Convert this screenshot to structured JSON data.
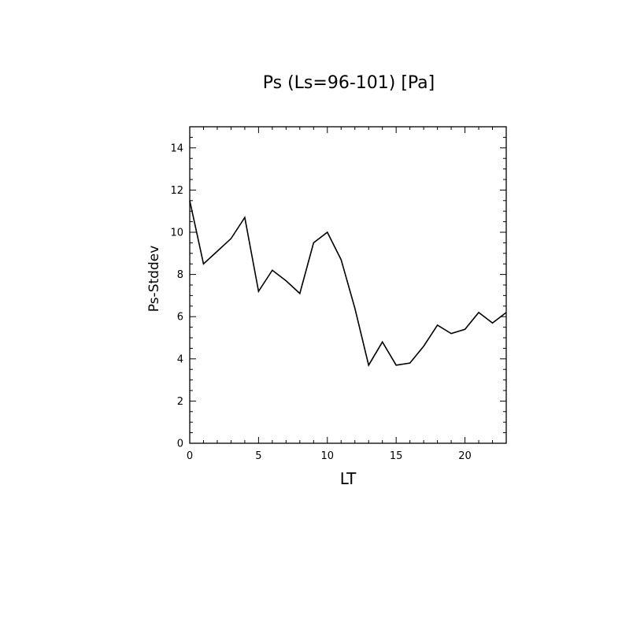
{
  "chart_data": {
    "type": "line",
    "title": "Ps (Ls=96-101) [Pa]",
    "xlabel": "LT",
    "ylabel": "Ps-Stddev",
    "xlim": [
      0,
      23
    ],
    "ylim": [
      0,
      15
    ],
    "x_ticks": [
      0,
      5,
      10,
      15,
      20
    ],
    "y_ticks": [
      0,
      2,
      4,
      6,
      8,
      10,
      12,
      14
    ],
    "grid": false,
    "legend": "none",
    "series": [
      {
        "x": [
          0,
          1,
          2,
          3,
          4,
          5,
          6,
          7,
          8,
          9,
          10,
          11,
          12,
          13,
          14,
          15,
          16,
          17,
          18,
          19,
          20,
          21,
          22,
          23
        ],
        "values": [
          11.5,
          8.5,
          9.1,
          9.7,
          10.7,
          7.2,
          8.2,
          7.7,
          7.1,
          9.5,
          10.0,
          8.7,
          6.4,
          3.7,
          4.8,
          3.7,
          3.8,
          4.6,
          5.6,
          5.2,
          5.4,
          6.2,
          5.7,
          6.2
        ]
      }
    ]
  }
}
